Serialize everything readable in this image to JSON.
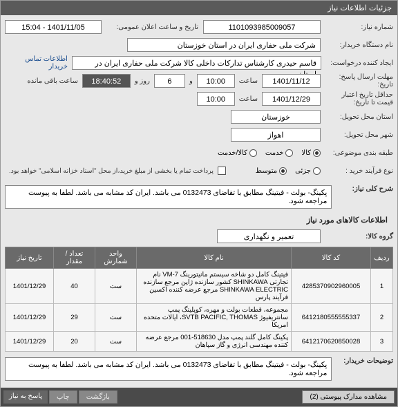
{
  "header": {
    "title": "جزئیات اطلاعات نیاز"
  },
  "form": {
    "req_no_label": "شماره نیاز:",
    "req_no": "1101093985009057",
    "announce_label": "تاریخ و ساعت اعلان عمومی:",
    "announce": "1401/11/05 - 15:04",
    "buyer_label": "نام دستگاه خریدار:",
    "buyer": "شرکت ملی حفاری ایران در استان خوزستان",
    "requester_label": "ایجاد کننده درخواست:",
    "requester": "قاسم حیدری کارشناس تدارکات داخلی کالا شرکت ملی حفاری ایران در استان",
    "contact_link": "اطلاعات تماس خریدار",
    "deadline_resp_label": "مهلت ارسال پاسخ:\nتاریخ:",
    "deadline_resp_date": "1401/11/12",
    "saat_label": "ساعت",
    "deadline_resp_time": "10:00",
    "va_label": "و",
    "days": "6",
    "rooz_label": "روز و",
    "remaining_time": "18:40:52",
    "remaining_label": "ساعت باقی مانده",
    "validity_label": "حداقل تاریخ اعتبار\nقیمت تا تاریخ:",
    "validity_date": "1401/12/29",
    "validity_time": "10:00",
    "province_label": "استان محل تحویل:",
    "province": "خوزستان",
    "city_label": "شهر محل تحویل:",
    "city": "اهواز",
    "subject_class_label": "طبقه بندی موضوعی:",
    "subj_opts": [
      {
        "label": "کالا",
        "selected": true
      },
      {
        "label": "خدمت",
        "selected": false
      },
      {
        "label": "کالا/خدمت",
        "selected": false
      }
    ],
    "purchase_type_label": "نوع فرآیند خرید :",
    "purchase_opts": [
      {
        "label": "جزئی",
        "selected": false
      },
      {
        "label": "متوسط",
        "selected": true
      }
    ],
    "partial_pay_text": "پرداخت تمام یا بخشی از مبلغ خرید،از محل \"اسناد خزانه اسلامی\" خواهد بود.",
    "summary_label": "شرح کلی نیاز:",
    "summary": "پکینگ- بولت - فیتینگ مطابق با تقاضای 0132473 می باشد. ایران کد مشابه می باشد. لطفا به پیوست مراجعه شود."
  },
  "items_section": {
    "title": "اطلاعات کالاهای مورد نیاز",
    "group_label": "گروه کالا:",
    "group_value": "تعمیر و نگهداری",
    "columns": [
      "ردیف",
      "کد کالا",
      "نام کالا",
      "واحد شمارش",
      "تعداد / مقدار",
      "تاریخ نیاز"
    ],
    "rows": [
      {
        "ridif": "1",
        "code": "4285370902960005",
        "name": "فیتینگ کامل دو شاخه سیستم مانیتورینگ VM-7 نام تجارتی SHINKAWA کشور سازنده ژاپن مرجع سازنده SHINKAWA ELECTRIC مرجع عرضه کننده اکسین فرآیند پارس",
        "unit": "ست",
        "qty": "40",
        "date": "1401/12/29"
      },
      {
        "ridif": "2",
        "code": "6412180555555337",
        "name": "مجموعه، قطعات بولت و مهره، کوپلینگ پمپ سانتریفیوژ SVTB PACIFIC, THOMAS، ایالات متحده امریکا",
        "unit": "ست",
        "qty": "29",
        "date": "1401/12/29"
      },
      {
        "ridif": "3",
        "code": "6412170620850028",
        "name": "پکینگ کامل گلند پمپ مدل 518630-001 مرجع عرضه کننده مهندسی انرژی و گاز سپاهان",
        "unit": "ست",
        "qty": "20",
        "date": "1401/12/29"
      }
    ]
  },
  "buyer_notes": {
    "label": "توضیحات خریدار:",
    "text": "پکینگ- بولت - فیتینگ مطابق با تقاضای 0132473 می باشد. ایران کد مشابه می باشد. لطفا به پیوست مراجعه شود."
  },
  "footer": {
    "btn_attach": "مشاهده مدارک پیوستی (2)",
    "btn_back": "بازگشت",
    "btn_print": "چاپ",
    "to_top": "پاسخ به نیاز"
  }
}
